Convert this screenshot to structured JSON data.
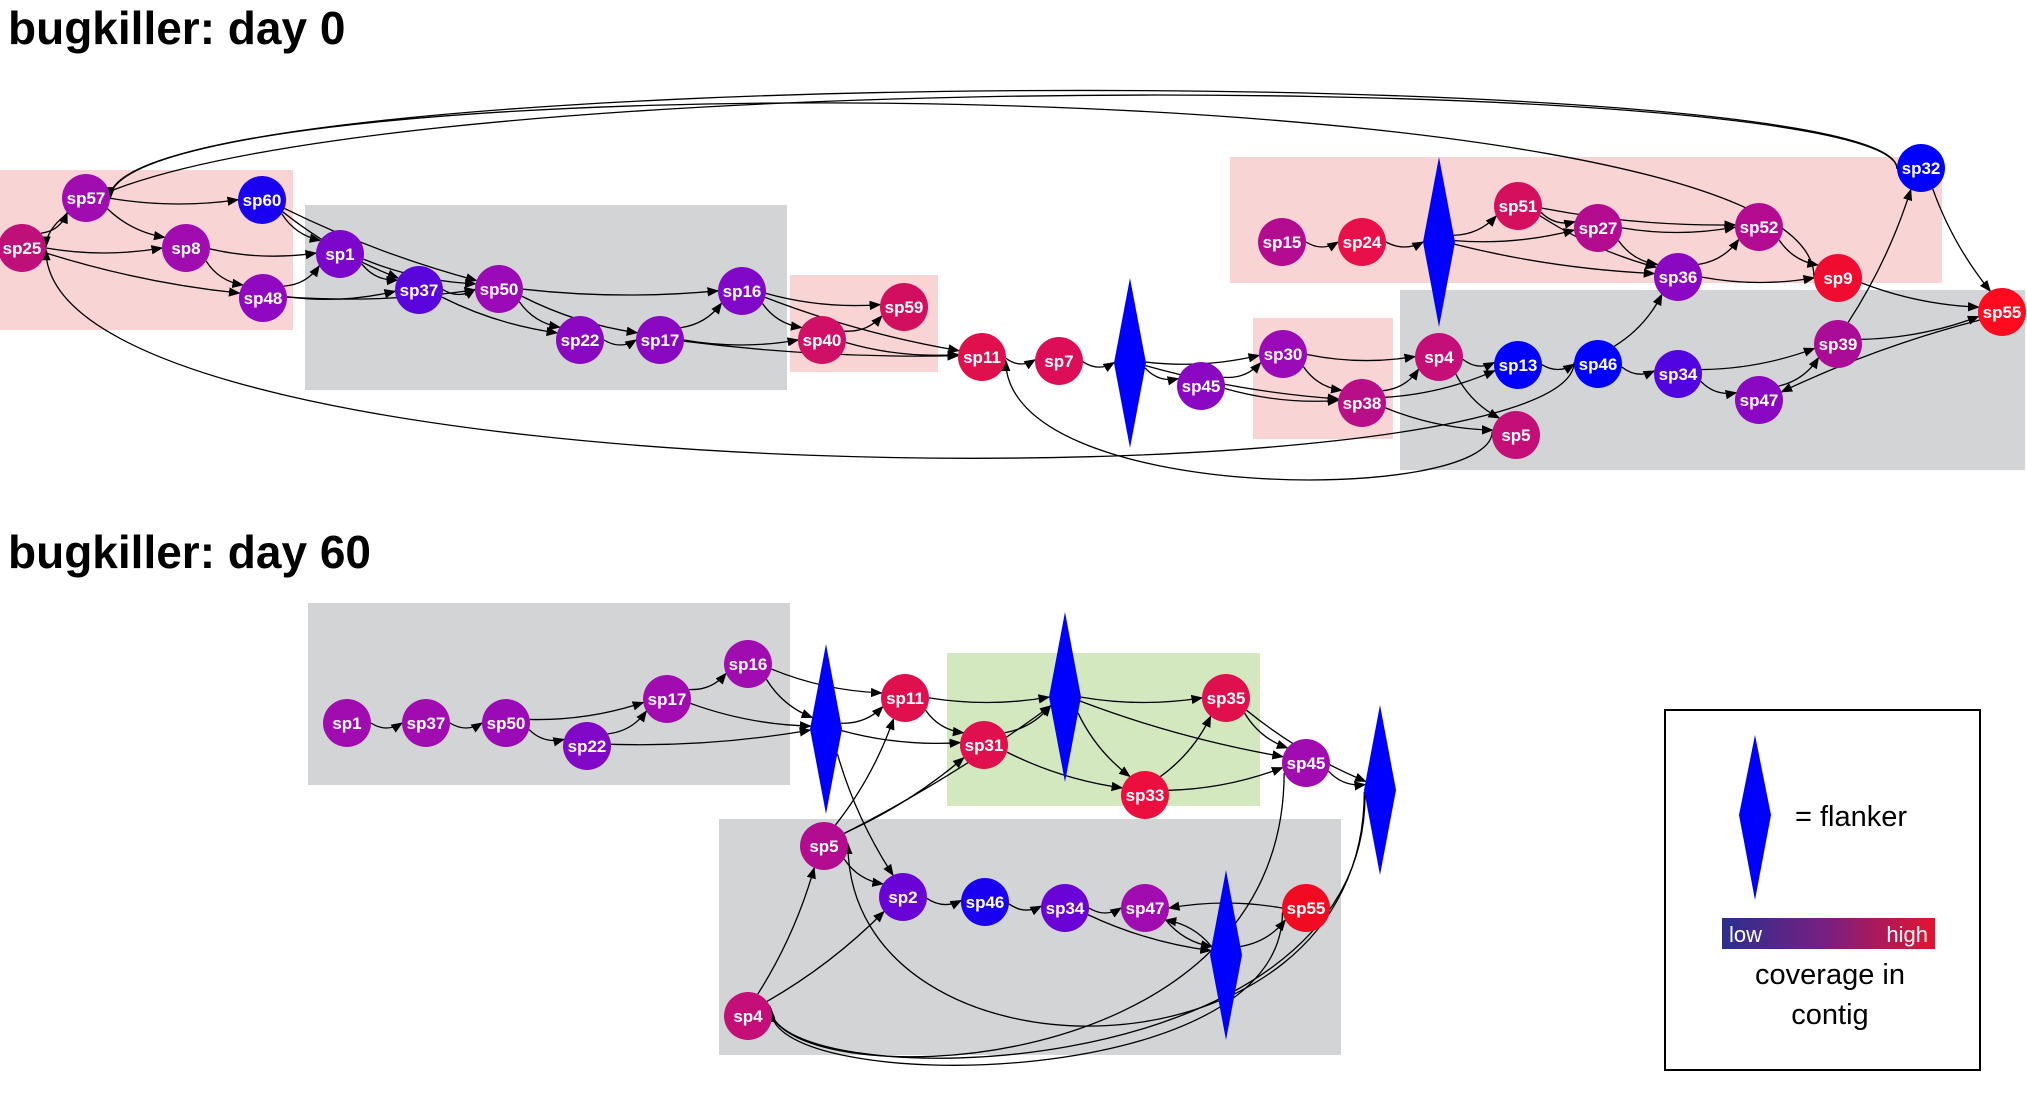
{
  "panels": [
    {
      "id": "day0",
      "title": "bugkiller: day 0",
      "nodes": [
        {
          "id": "a_sp25",
          "label": "sp25",
          "shape": "circle",
          "color": "#bf0f78"
        },
        {
          "id": "a_sp57",
          "label": "sp57",
          "shape": "circle",
          "color": "#a00cb0"
        },
        {
          "id": "a_sp60",
          "label": "sp60",
          "shape": "circle",
          "color": "#1a00f0"
        },
        {
          "id": "a_sp8",
          "label": "sp8",
          "shape": "circle",
          "color": "#a00cb0"
        },
        {
          "id": "a_sp48",
          "label": "sp48",
          "shape": "circle",
          "color": "#9008c0"
        },
        {
          "id": "a_sp1",
          "label": "sp1",
          "shape": "circle",
          "color": "#7c06cc"
        },
        {
          "id": "a_sp37",
          "label": "sp37",
          "shape": "circle",
          "color": "#5a05dc"
        },
        {
          "id": "a_sp50",
          "label": "sp50",
          "shape": "circle",
          "color": "#9a0ab6"
        },
        {
          "id": "a_sp16",
          "label": "sp16",
          "shape": "circle",
          "color": "#8008c6"
        },
        {
          "id": "a_sp22",
          "label": "sp22",
          "shape": "circle",
          "color": "#8a08c2"
        },
        {
          "id": "a_sp17",
          "label": "sp17",
          "shape": "circle",
          "color": "#8a08c2"
        },
        {
          "id": "a_sp40",
          "label": "sp40",
          "shape": "circle",
          "color": "#d01066"
        },
        {
          "id": "a_sp59",
          "label": "sp59",
          "shape": "circle",
          "color": "#d20e5e"
        },
        {
          "id": "a_sp11",
          "label": "sp11",
          "shape": "circle",
          "color": "#e0104e"
        },
        {
          "id": "a_sp7",
          "label": "sp7",
          "shape": "circle",
          "color": "#dc0e58"
        },
        {
          "id": "a_fl1",
          "label": "",
          "shape": "diamond",
          "color": "#0000ff"
        },
        {
          "id": "a_sp45",
          "label": "sp45",
          "shape": "circle",
          "color": "#8a08c2"
        },
        {
          "id": "a_sp30",
          "label": "sp30",
          "shape": "circle",
          "color": "#9a0ab6"
        },
        {
          "id": "a_sp38",
          "label": "sp38",
          "shape": "circle",
          "color": "#b80e88"
        },
        {
          "id": "a_sp4",
          "label": "sp4",
          "shape": "circle",
          "color": "#c40e78"
        },
        {
          "id": "a_sp13",
          "label": "sp13",
          "shape": "circle",
          "color": "#0000ff"
        },
        {
          "id": "a_sp5",
          "label": "sp5",
          "shape": "circle",
          "color": "#c40e78"
        },
        {
          "id": "a_sp46",
          "label": "sp46",
          "shape": "circle",
          "color": "#0000ff"
        },
        {
          "id": "a_sp34",
          "label": "sp34",
          "shape": "circle",
          "color": "#5204e0"
        },
        {
          "id": "a_sp47",
          "label": "sp47",
          "shape": "circle",
          "color": "#8a08c2"
        },
        {
          "id": "a_sp39",
          "label": "sp39",
          "shape": "circle",
          "color": "#aa0c98"
        },
        {
          "id": "a_sp55",
          "label": "sp55",
          "shape": "circle",
          "color": "#ff0a1e"
        },
        {
          "id": "a_sp32",
          "label": "sp32",
          "shape": "circle",
          "color": "#0000ff"
        },
        {
          "id": "a_sp15",
          "label": "sp15",
          "shape": "circle",
          "color": "#b40c90"
        },
        {
          "id": "a_sp24",
          "label": "sp24",
          "shape": "circle",
          "color": "#e8104a"
        },
        {
          "id": "a_fl2",
          "label": "",
          "shape": "diamond",
          "color": "#0000ff"
        },
        {
          "id": "a_sp51",
          "label": "sp51",
          "shape": "circle",
          "color": "#d4105e"
        },
        {
          "id": "a_sp27",
          "label": "sp27",
          "shape": "circle",
          "color": "#b40c90"
        },
        {
          "id": "a_sp52",
          "label": "sp52",
          "shape": "circle",
          "color": "#b40c90"
        },
        {
          "id": "a_sp36",
          "label": "sp36",
          "shape": "circle",
          "color": "#8a08c2"
        },
        {
          "id": "a_sp9",
          "label": "sp9",
          "shape": "circle",
          "color": "#f00c30"
        }
      ],
      "edges": [
        [
          "a_sp25",
          "a_sp57"
        ],
        [
          "a_sp25",
          "a_sp8"
        ],
        [
          "a_sp25",
          "a_sp48"
        ],
        [
          "a_sp57",
          "a_sp60"
        ],
        [
          "a_sp57",
          "a_sp8"
        ],
        [
          "a_sp8",
          "a_sp48"
        ],
        [
          "a_sp8",
          "a_sp1"
        ],
        [
          "a_sp48",
          "a_sp1"
        ],
        [
          "a_sp48",
          "a_sp37"
        ],
        [
          "a_sp48",
          "a_sp50"
        ],
        [
          "a_sp60",
          "a_sp1"
        ],
        [
          "a_sp60",
          "a_sp37"
        ],
        [
          "a_sp60",
          "a_sp50"
        ],
        [
          "a_sp1",
          "a_sp37"
        ],
        [
          "a_sp1",
          "a_sp50"
        ],
        [
          "a_sp37",
          "a_sp50"
        ],
        [
          "a_sp37",
          "a_sp22"
        ],
        [
          "a_sp50",
          "a_sp16"
        ],
        [
          "a_sp50",
          "a_sp22"
        ],
        [
          "a_sp50",
          "a_sp17"
        ],
        [
          "a_sp22",
          "a_sp17"
        ],
        [
          "a_sp17",
          "a_sp16"
        ],
        [
          "a_sp17",
          "a_sp40"
        ],
        [
          "a_sp17",
          "a_sp11"
        ],
        [
          "a_sp16",
          "a_sp40"
        ],
        [
          "a_sp16",
          "a_sp59"
        ],
        [
          "a_sp16",
          "a_sp11"
        ],
        [
          "a_sp40",
          "a_sp59"
        ],
        [
          "a_sp40",
          "a_sp11"
        ],
        [
          "a_sp11",
          "a_sp7"
        ],
        [
          "a_sp7",
          "a_fl1"
        ],
        [
          "a_fl1",
          "a_sp45"
        ],
        [
          "a_fl1",
          "a_sp30"
        ],
        [
          "a_fl1",
          "a_sp38"
        ],
        [
          "a_sp45",
          "a_sp30"
        ],
        [
          "a_sp45",
          "a_sp38"
        ],
        [
          "a_sp30",
          "a_sp38"
        ],
        [
          "a_sp30",
          "a_sp4"
        ],
        [
          "a_sp38",
          "a_sp4"
        ],
        [
          "a_sp38",
          "a_sp13"
        ],
        [
          "a_sp38",
          "a_sp5"
        ],
        [
          "a_sp4",
          "a_sp13"
        ],
        [
          "a_sp4",
          "a_sp5"
        ],
        [
          "a_sp5",
          "a_sp11"
        ],
        [
          "a_sp13",
          "a_sp46"
        ],
        [
          "a_sp46",
          "a_sp34"
        ],
        [
          "a_sp46",
          "a_sp36"
        ],
        [
          "a_sp34",
          "a_sp47"
        ],
        [
          "a_sp34",
          "a_sp39"
        ],
        [
          "a_sp47",
          "a_sp39"
        ],
        [
          "a_sp39",
          "a_sp32"
        ],
        [
          "a_sp39",
          "a_sp55"
        ],
        [
          "a_sp55",
          "a_sp47"
        ],
        [
          "a_sp32",
          "a_sp55"
        ],
        [
          "a_sp32",
          "a_sp25"
        ],
        [
          "a_sp32",
          "a_sp57"
        ],
        [
          "a_sp9",
          "a_sp57"
        ],
        [
          "a_sp9",
          "a_sp55"
        ],
        [
          "a_sp15",
          "a_sp24"
        ],
        [
          "a_sp24",
          "a_fl2"
        ],
        [
          "a_fl2",
          "a_sp51"
        ],
        [
          "a_fl2",
          "a_sp27"
        ],
        [
          "a_fl2",
          "a_sp36"
        ],
        [
          "a_sp51",
          "a_sp27"
        ],
        [
          "a_sp51",
          "a_sp52"
        ],
        [
          "a_sp51",
          "a_sp36"
        ],
        [
          "a_sp27",
          "a_sp52"
        ],
        [
          "a_sp27",
          "a_sp36"
        ],
        [
          "a_sp36",
          "a_sp52"
        ],
        [
          "a_sp36",
          "a_sp9"
        ],
        [
          "a_sp52",
          "a_sp9"
        ],
        [
          "a_sp46",
          "a_sp25"
        ]
      ]
    },
    {
      "id": "day60",
      "title": "bugkiller: day 60",
      "nodes": [
        {
          "id": "b_sp1",
          "label": "sp1",
          "shape": "circle",
          "color": "#a00cb0"
        },
        {
          "id": "b_sp37",
          "label": "sp37",
          "shape": "circle",
          "color": "#a00cb0"
        },
        {
          "id": "b_sp50",
          "label": "sp50",
          "shape": "circle",
          "color": "#9a0ab6"
        },
        {
          "id": "b_sp22",
          "label": "sp22",
          "shape": "circle",
          "color": "#8008c6"
        },
        {
          "id": "b_sp17",
          "label": "sp17",
          "shape": "circle",
          "color": "#a00cb0"
        },
        {
          "id": "b_sp16",
          "label": "sp16",
          "shape": "circle",
          "color": "#a00cb0"
        },
        {
          "id": "b_fl1",
          "label": "",
          "shape": "diamond",
          "color": "#0000ff"
        },
        {
          "id": "b_sp11",
          "label": "sp11",
          "shape": "circle",
          "color": "#e0104e"
        },
        {
          "id": "b_sp31",
          "label": "sp31",
          "shape": "circle",
          "color": "#e0104e"
        },
        {
          "id": "b_fl2",
          "label": "",
          "shape": "diamond",
          "color": "#0000ff"
        },
        {
          "id": "b_sp35",
          "label": "sp35",
          "shape": "circle",
          "color": "#e0104e"
        },
        {
          "id": "b_sp33",
          "label": "sp33",
          "shape": "circle",
          "color": "#ec0e3e"
        },
        {
          "id": "b_sp45",
          "label": "sp45",
          "shape": "circle",
          "color": "#a00cb0"
        },
        {
          "id": "b_fl3",
          "label": "",
          "shape": "diamond",
          "color": "#0000ff"
        },
        {
          "id": "b_sp5",
          "label": "sp5",
          "shape": "circle",
          "color": "#b40c90"
        },
        {
          "id": "b_sp2",
          "label": "sp2",
          "shape": "circle",
          "color": "#6a04d6"
        },
        {
          "id": "b_sp46",
          "label": "sp46",
          "shape": "circle",
          "color": "#1a00f0"
        },
        {
          "id": "b_sp34",
          "label": "sp34",
          "shape": "circle",
          "color": "#6a04d6"
        },
        {
          "id": "b_sp47",
          "label": "sp47",
          "shape": "circle",
          "color": "#a00cb0"
        },
        {
          "id": "b_fl4",
          "label": "",
          "shape": "diamond",
          "color": "#0000ff"
        },
        {
          "id": "b_sp55",
          "label": "sp55",
          "shape": "circle",
          "color": "#f00a22"
        },
        {
          "id": "b_sp4",
          "label": "sp4",
          "shape": "circle",
          "color": "#c40e78"
        }
      ],
      "edges": [
        [
          "b_sp1",
          "b_sp37"
        ],
        [
          "b_sp37",
          "b_sp50"
        ],
        [
          "b_sp50",
          "b_sp17"
        ],
        [
          "b_sp50",
          "b_sp22"
        ],
        [
          "b_sp22",
          "b_sp17"
        ],
        [
          "b_sp22",
          "b_fl1"
        ],
        [
          "b_sp17",
          "b_sp16"
        ],
        [
          "b_sp17",
          "b_fl1"
        ],
        [
          "b_sp16",
          "b_fl1"
        ],
        [
          "b_sp16",
          "b_sp11"
        ],
        [
          "b_fl1",
          "b_sp11"
        ],
        [
          "b_fl1",
          "b_sp31"
        ],
        [
          "b_fl1",
          "b_sp2"
        ],
        [
          "b_sp11",
          "b_sp31"
        ],
        [
          "b_sp11",
          "b_fl2"
        ],
        [
          "b_sp31",
          "b_fl2"
        ],
        [
          "b_sp31",
          "b_sp33"
        ],
        [
          "b_fl2",
          "b_sp35"
        ],
        [
          "b_fl2",
          "b_sp33"
        ],
        [
          "b_fl2",
          "b_sp45"
        ],
        [
          "b_sp33",
          "b_sp35"
        ],
        [
          "b_sp33",
          "b_sp45"
        ],
        [
          "b_sp35",
          "b_sp45"
        ],
        [
          "b_sp35",
          "b_fl3"
        ],
        [
          "b_sp45",
          "b_fl3"
        ],
        [
          "b_fl3",
          "b_sp5"
        ],
        [
          "b_fl3",
          "b_sp4"
        ],
        [
          "b_sp5",
          "b_fl2"
        ],
        [
          "b_sp5",
          "b_sp31"
        ],
        [
          "b_sp5",
          "b_sp11"
        ],
        [
          "b_sp5",
          "b_sp2"
        ],
        [
          "b_sp4",
          "b_sp5"
        ],
        [
          "b_sp4",
          "b_sp2"
        ],
        [
          "b_sp2",
          "b_sp46"
        ],
        [
          "b_sp46",
          "b_sp34"
        ],
        [
          "b_sp34",
          "b_sp47"
        ],
        [
          "b_sp34",
          "b_fl4"
        ],
        [
          "b_sp47",
          "b_fl4"
        ],
        [
          "b_fl4",
          "b_sp47"
        ],
        [
          "b_fl4",
          "b_sp55"
        ],
        [
          "b_sp55",
          "b_sp47"
        ],
        [
          "b_sp45",
          "b_sp4"
        ],
        [
          "b_sp55",
          "b_sp4"
        ]
      ]
    }
  ],
  "legend": {
    "flanker_label": "=  flanker",
    "low_label": "low",
    "high_label": "high",
    "caption_line1": "coverage in",
    "caption_line2": "contig",
    "flanker_color": "#0000ff",
    "gradient_low_color": "#2a2f8f",
    "gradient_high_color": "#e4132f"
  },
  "colors": {
    "box_pink": "#f8d4d4",
    "box_gray": "#d3d4d6",
    "box_green": "#d3e8bf"
  }
}
